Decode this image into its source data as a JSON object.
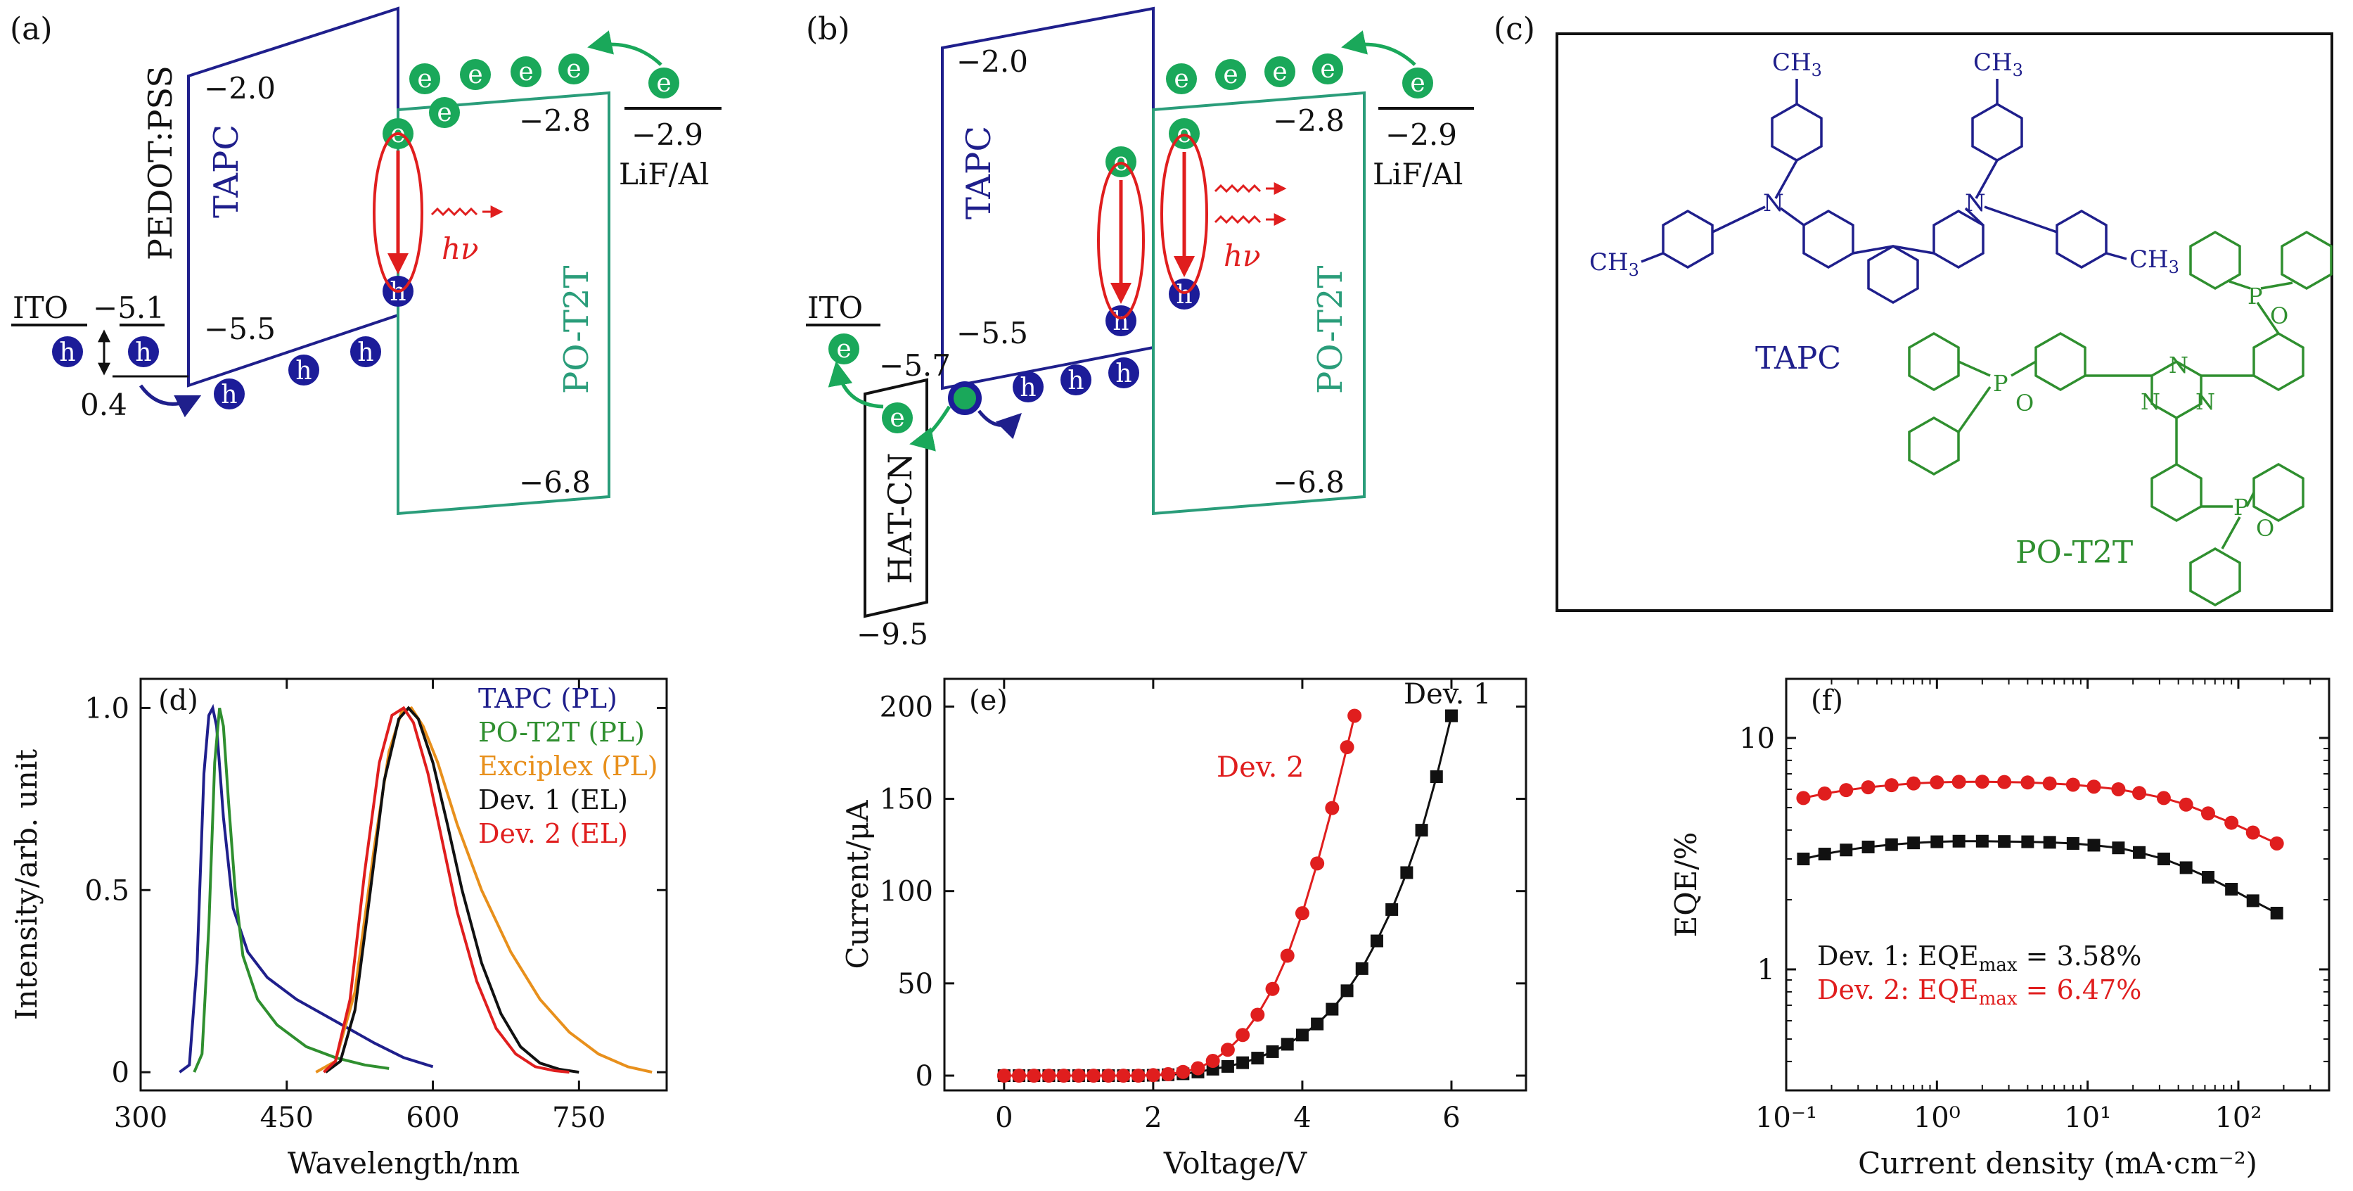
{
  "colors": {
    "black": "#111111",
    "navy": "#1f1f8c",
    "teal": "#2a9d7a",
    "green": "#2f8f2f",
    "orange": "#e8901c",
    "red": "#e01e1e",
    "electron": "#1aa85a",
    "hole": "#1c1c99"
  },
  "panel_a": {
    "label": "(a)",
    "pedot": "PEDOT:PSS",
    "tapc": "TAPC",
    "potzt": "PO-T2T",
    "ito": "ITO",
    "lifal": "LiF/Al",
    "tapc_lumo": "−2.0",
    "tapc_homo": "−5.5",
    "potzt_lumo": "−2.8",
    "potzt_homo": "−6.8",
    "lifal_level": "−2.9",
    "ito_level": "−5.1",
    "barrier": "0.4",
    "hv": "hν",
    "e": "e",
    "h": "h"
  },
  "panel_b": {
    "label": "(b)",
    "tapc": "TAPC",
    "potzt": "PO-T2T",
    "ito": "ITO",
    "lifal": "LiF/Al",
    "hatcn": "HAT-CN",
    "tapc_lumo": "−2.0",
    "tapc_homo": "−5.5",
    "potzt_lumo": "−2.8",
    "potzt_homo": "−6.8",
    "lifal_level": "−2.9",
    "hatcn_lumo": "−5.7",
    "hatcn_homo": "−9.5",
    "hv": "hν",
    "e": "e",
    "h": "h"
  },
  "panel_c": {
    "label": "(c)",
    "tapc_name": "TAPC",
    "potzt_name": "PO-T2T",
    "ch3": "CH",
    "ch3_sub": "3",
    "n": "N",
    "p": "P",
    "o": "O"
  },
  "chart_data": [
    {
      "panel": "(d)",
      "type": "line",
      "xlabel": "Wavelength/nm",
      "ylabel": "Intensity/arb. unit",
      "xlim": [
        300,
        840
      ],
      "ylim": [
        -0.05,
        1.08
      ],
      "xticks": [
        "300",
        "450",
        "600",
        "750"
      ],
      "yticks": [
        "0",
        "0.5",
        "1.0"
      ],
      "legend_position": "top-right",
      "grid": false,
      "series": [
        {
          "name": "TAPC (PL)",
          "color": "#1f1f8c",
          "x": [
            340,
            350,
            358,
            365,
            370,
            374,
            378,
            385,
            395,
            410,
            430,
            460,
            500,
            540,
            570,
            600
          ],
          "y": [
            0,
            0.02,
            0.3,
            0.82,
            0.98,
            1.0,
            0.95,
            0.7,
            0.45,
            0.33,
            0.26,
            0.2,
            0.14,
            0.08,
            0.04,
            0.015
          ]
        },
        {
          "name": "PO-T2T (PL)",
          "color": "#2f8f2f",
          "x": [
            355,
            363,
            370,
            376,
            381,
            385,
            390,
            397,
            405,
            420,
            440,
            470,
            500,
            530,
            555
          ],
          "y": [
            0,
            0.05,
            0.4,
            0.85,
            1.0,
            0.95,
            0.75,
            0.5,
            0.32,
            0.2,
            0.13,
            0.07,
            0.04,
            0.02,
            0.01
          ]
        },
        {
          "name": "Exciplex (PL)",
          "color": "#e8901c",
          "x": [
            480,
            500,
            520,
            540,
            555,
            568,
            578,
            590,
            605,
            625,
            650,
            680,
            710,
            740,
            770,
            800,
            825
          ],
          "y": [
            0,
            0.03,
            0.22,
            0.62,
            0.88,
            0.99,
            1.0,
            0.95,
            0.85,
            0.68,
            0.5,
            0.33,
            0.2,
            0.11,
            0.05,
            0.015,
            0
          ]
        },
        {
          "name": "Dev. 1 (EL)",
          "color": "#111111",
          "x": [
            490,
            505,
            520,
            535,
            550,
            565,
            575,
            585,
            600,
            615,
            630,
            650,
            670,
            690,
            710,
            730,
            750
          ],
          "y": [
            0,
            0.03,
            0.17,
            0.48,
            0.8,
            0.97,
            1.0,
            0.97,
            0.85,
            0.68,
            0.5,
            0.3,
            0.16,
            0.07,
            0.025,
            0.008,
            0
          ]
        },
        {
          "name": "Dev. 2 (EL)",
          "color": "#e01e1e",
          "x": [
            488,
            500,
            515,
            530,
            545,
            558,
            570,
            580,
            595,
            610,
            625,
            645,
            665,
            685,
            705,
            725,
            740
          ],
          "y": [
            0,
            0.03,
            0.2,
            0.55,
            0.85,
            0.98,
            1.0,
            0.96,
            0.82,
            0.63,
            0.44,
            0.25,
            0.12,
            0.05,
            0.015,
            0.004,
            0
          ]
        }
      ]
    },
    {
      "panel": "(e)",
      "type": "line",
      "xlabel": "Voltage/V",
      "ylabel": "Current/μA",
      "xlim": [
        -0.8,
        7.0
      ],
      "ylim": [
        -8,
        215
      ],
      "xticks": [
        "0",
        "2",
        "4",
        "6"
      ],
      "yticks": [
        "0",
        "50",
        "100",
        "150",
        "200"
      ],
      "grid": false,
      "series": [
        {
          "name": "Dev. 1",
          "color": "#111111",
          "marker": "square",
          "x": [
            0.0,
            0.2,
            0.4,
            0.6,
            0.8,
            1.0,
            1.2,
            1.4,
            1.6,
            1.8,
            2.0,
            2.2,
            2.4,
            2.6,
            2.8,
            3.0,
            3.2,
            3.4,
            3.6,
            3.8,
            4.0,
            4.2,
            4.4,
            4.6,
            4.8,
            5.0,
            5.2,
            5.4,
            5.6,
            5.8,
            6.0
          ],
          "y": [
            0,
            0,
            0,
            0,
            0,
            0,
            0,
            0,
            0,
            0,
            0.2,
            0.5,
            1,
            2,
            3.5,
            5,
            7,
            9.5,
            13,
            17,
            22,
            28,
            36,
            46,
            58,
            73,
            90,
            110,
            133,
            162,
            195
          ]
        },
        {
          "name": "Dev. 2",
          "color": "#e01e1e",
          "marker": "circle",
          "x": [
            0.0,
            0.2,
            0.4,
            0.6,
            0.8,
            1.0,
            1.2,
            1.4,
            1.6,
            1.8,
            2.0,
            2.2,
            2.4,
            2.6,
            2.8,
            3.0,
            3.2,
            3.4,
            3.6,
            3.8,
            4.0,
            4.2,
            4.4,
            4.6,
            4.7
          ],
          "y": [
            0,
            0,
            0,
            0,
            0,
            0,
            0,
            0,
            0,
            0,
            0.3,
            0.8,
            2,
            4,
            8,
            14,
            22,
            33,
            47,
            65,
            88,
            115,
            145,
            178,
            195
          ]
        }
      ]
    },
    {
      "panel": "(f)",
      "type": "scatter",
      "xlabel": "Current density (mA·cm⁻²)",
      "ylabel": "EQE/%",
      "xscale": "log",
      "yscale": "log",
      "xlim": [
        0.1,
        400
      ],
      "ylim": [
        0.3,
        18
      ],
      "xticks": [
        "10⁻¹",
        "10⁰",
        "10¹",
        "10²"
      ],
      "yticks": [
        "1",
        "10"
      ],
      "grid": false,
      "annotations": [
        {
          "text": "Dev. 1: EQE",
          "sub": "max",
          "tail": " = 3.58%",
          "color": "#111111"
        },
        {
          "text": "Dev. 2: EQE",
          "sub": "max",
          "tail": " = 6.47%",
          "color": "#e01e1e"
        }
      ],
      "series": [
        {
          "name": "Dev. 1",
          "color": "#111111",
          "marker": "square",
          "x": [
            0.13,
            0.18,
            0.25,
            0.35,
            0.5,
            0.7,
            1.0,
            1.4,
            2.0,
            2.8,
            4.0,
            5.6,
            8.0,
            11,
            16,
            22,
            32,
            45,
            63,
            90,
            125,
            180
          ],
          "y": [
            3.0,
            3.15,
            3.28,
            3.38,
            3.46,
            3.52,
            3.56,
            3.58,
            3.58,
            3.57,
            3.56,
            3.54,
            3.5,
            3.44,
            3.35,
            3.2,
            3.0,
            2.75,
            2.5,
            2.22,
            1.98,
            1.75
          ]
        },
        {
          "name": "Dev. 2",
          "color": "#e01e1e",
          "marker": "circle",
          "x": [
            0.13,
            0.18,
            0.25,
            0.35,
            0.5,
            0.7,
            1.0,
            1.4,
            2.0,
            2.8,
            4.0,
            5.6,
            8.0,
            11,
            16,
            22,
            32,
            45,
            63,
            90,
            125,
            180
          ],
          "y": [
            5.5,
            5.75,
            5.95,
            6.12,
            6.25,
            6.36,
            6.43,
            6.46,
            6.47,
            6.45,
            6.42,
            6.36,
            6.28,
            6.16,
            6.0,
            5.78,
            5.5,
            5.15,
            4.72,
            4.3,
            3.9,
            3.5
          ]
        }
      ]
    }
  ]
}
